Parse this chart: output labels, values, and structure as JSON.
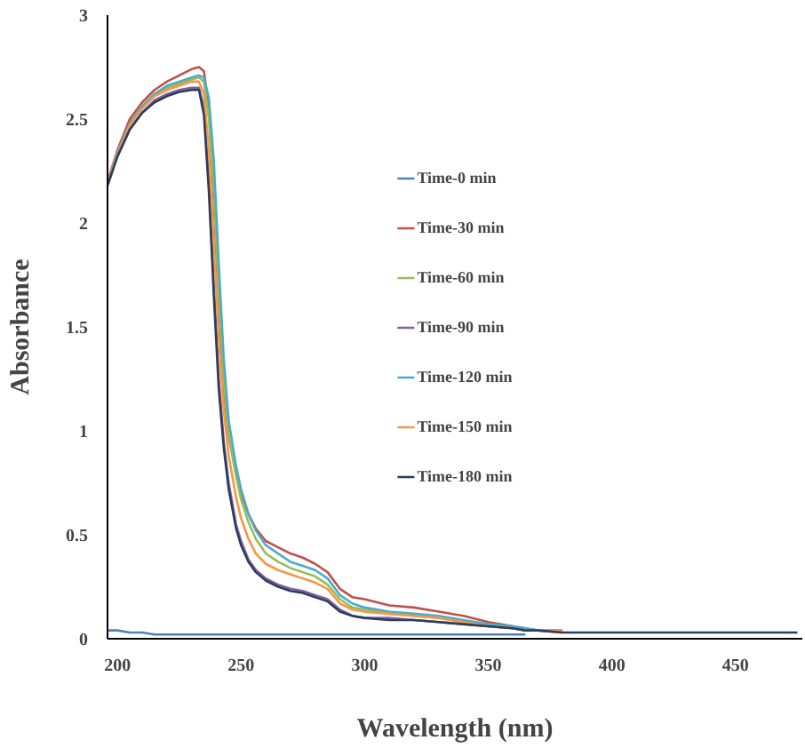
{
  "chart_data": {
    "type": "line",
    "xlabel": "Wavelength (nm)",
    "ylabel": "Absorbance",
    "xlim": [
      196,
      477
    ],
    "ylim": [
      0,
      3
    ],
    "xticks": [
      200,
      250,
      300,
      350,
      400,
      450
    ],
    "yticks": [
      0,
      0.5,
      1,
      1.5,
      2,
      2.5,
      3
    ],
    "grid": false,
    "legend": "center",
    "marker": "none",
    "line_style": "solid",
    "x": [
      196,
      200,
      205,
      210,
      215,
      220,
      225,
      230,
      233,
      235,
      237,
      239,
      241,
      243,
      245,
      248,
      250,
      253,
      256,
      260,
      265,
      270,
      275,
      280,
      285,
      290,
      295,
      300,
      310,
      320,
      330,
      340,
      350,
      360,
      365,
      370,
      380,
      400,
      420,
      450,
      475
    ],
    "series": [
      {
        "name": "Time-0 min",
        "color": "#4f81bd",
        "values": [
          0.04,
          0.04,
          0.03,
          0.03,
          0.02,
          0.02,
          0.02,
          0.02,
          0.02,
          0.02,
          0.02,
          0.02,
          0.02,
          0.02,
          0.02,
          0.02,
          0.02,
          0.02,
          0.02,
          0.02,
          0.02,
          0.02,
          0.02,
          0.02,
          0.02,
          0.02,
          0.02,
          0.02,
          0.02,
          0.02,
          0.02,
          0.02,
          0.02,
          0.02,
          0.02,
          null,
          null,
          null,
          null,
          null,
          null
        ]
      },
      {
        "name": "Time-30 min",
        "color": "#c0504d",
        "values": [
          2.2,
          2.35,
          2.5,
          2.58,
          2.64,
          2.68,
          2.71,
          2.74,
          2.75,
          2.73,
          2.55,
          2.1,
          1.6,
          1.2,
          0.97,
          0.8,
          0.7,
          0.6,
          0.53,
          0.47,
          0.44,
          0.41,
          0.39,
          0.36,
          0.32,
          0.24,
          0.2,
          0.19,
          0.16,
          0.15,
          0.13,
          0.11,
          0.08,
          0.06,
          0.05,
          0.04,
          0.04,
          null,
          null,
          null,
          null
        ]
      },
      {
        "name": "Time-60 min",
        "color": "#9bbb59",
        "values": [
          2.19,
          2.34,
          2.48,
          2.56,
          2.62,
          2.65,
          2.67,
          2.69,
          2.7,
          2.68,
          2.5,
          2.15,
          1.65,
          1.25,
          0.98,
          0.78,
          0.67,
          0.56,
          0.48,
          0.41,
          0.37,
          0.34,
          0.32,
          0.3,
          0.26,
          0.19,
          0.15,
          0.14,
          0.12,
          0.11,
          0.1,
          0.08,
          0.07,
          0.05,
          null,
          null,
          null,
          null,
          null,
          null,
          null
        ]
      },
      {
        "name": "Time-90 min",
        "color": "#8064a2",
        "values": [
          2.18,
          2.32,
          2.45,
          2.53,
          2.59,
          2.62,
          2.64,
          2.65,
          2.65,
          2.55,
          2.2,
          1.7,
          1.25,
          0.95,
          0.75,
          0.55,
          0.47,
          0.38,
          0.33,
          0.29,
          0.26,
          0.24,
          0.23,
          0.21,
          0.19,
          0.14,
          0.11,
          0.1,
          0.1,
          0.09,
          0.08,
          0.07,
          0.06,
          0.05,
          0.04,
          0.04,
          0.03,
          null,
          null,
          null,
          null
        ]
      },
      {
        "name": "Time-120 min",
        "color": "#4bacc6",
        "values": [
          2.19,
          2.34,
          2.48,
          2.56,
          2.62,
          2.66,
          2.68,
          2.7,
          2.71,
          2.7,
          2.6,
          2.3,
          1.8,
          1.35,
          1.05,
          0.83,
          0.72,
          0.6,
          0.52,
          0.45,
          0.41,
          0.37,
          0.35,
          0.33,
          0.29,
          0.21,
          0.17,
          0.15,
          0.13,
          0.12,
          0.11,
          0.09,
          0.07,
          0.06,
          0.05,
          0.04,
          0.04,
          null,
          null,
          null,
          null
        ]
      },
      {
        "name": "Time-150 min",
        "color": "#f79646",
        "values": [
          2.19,
          2.33,
          2.47,
          2.55,
          2.61,
          2.64,
          2.66,
          2.68,
          2.68,
          2.62,
          2.35,
          1.9,
          1.45,
          1.1,
          0.88,
          0.68,
          0.58,
          0.48,
          0.41,
          0.36,
          0.33,
          0.31,
          0.29,
          0.27,
          0.24,
          0.17,
          0.14,
          0.13,
          0.12,
          0.11,
          0.1,
          0.08,
          0.06,
          0.05,
          0.04,
          0.04,
          0.04,
          null,
          null,
          null,
          null
        ]
      },
      {
        "name": "Time-180 min",
        "color": "#2c3e5c",
        "values": [
          2.18,
          2.32,
          2.45,
          2.53,
          2.58,
          2.61,
          2.63,
          2.64,
          2.64,
          2.52,
          2.15,
          1.65,
          1.2,
          0.92,
          0.72,
          0.53,
          0.45,
          0.37,
          0.32,
          0.28,
          0.25,
          0.23,
          0.22,
          0.2,
          0.18,
          0.13,
          0.11,
          0.1,
          0.09,
          0.09,
          0.08,
          0.07,
          0.06,
          0.05,
          0.04,
          0.04,
          0.03,
          0.03,
          0.03,
          0.03,
          0.03
        ]
      }
    ]
  }
}
